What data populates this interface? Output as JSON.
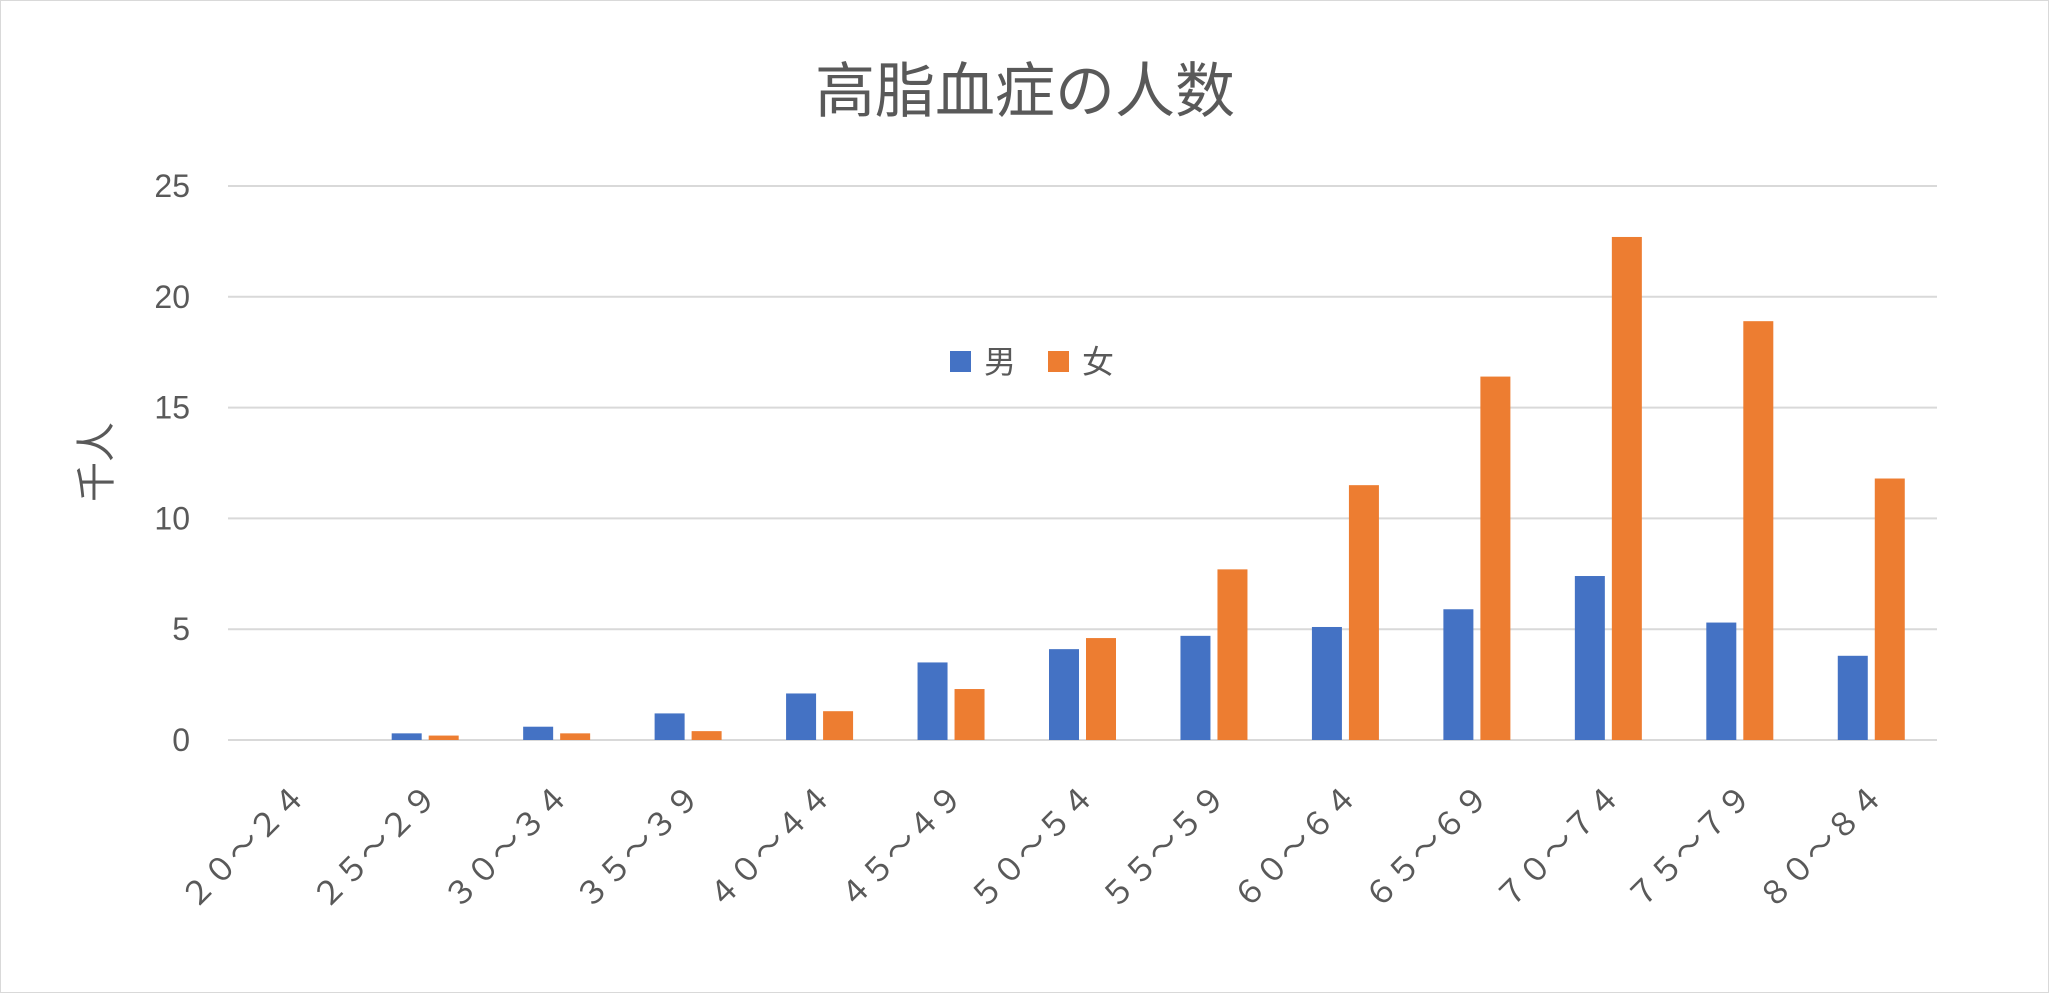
{
  "chart_data": {
    "type": "bar",
    "title": "高脂血症の人数",
    "ylabel": "千人",
    "xlabel": "",
    "ylim": [
      0,
      25
    ],
    "yticks": [
      0,
      5,
      10,
      15,
      20,
      25
    ],
    "grid": true,
    "legend_position": "top-center",
    "categories": [
      "２０～２４",
      "２５～２９",
      "３０～３４",
      "３５～３９",
      "４０～４４",
      "４５～４９",
      "５０～５４",
      "５５～５９",
      "６０～６４",
      "６５～６９",
      "７０～７４",
      "７５～７９",
      "８０～８４"
    ],
    "series": [
      {
        "name": "男",
        "color": "#4472C4",
        "values": [
          0,
          0.3,
          0.6,
          1.2,
          2.1,
          3.5,
          4.1,
          4.7,
          5.1,
          5.9,
          7.4,
          5.3,
          3.8
        ]
      },
      {
        "name": "女",
        "color": "#ED7D31",
        "values": [
          0,
          0.2,
          0.3,
          0.4,
          1.3,
          2.3,
          4.6,
          7.7,
          11.5,
          16.4,
          22.7,
          18.9,
          11.8
        ]
      }
    ]
  }
}
